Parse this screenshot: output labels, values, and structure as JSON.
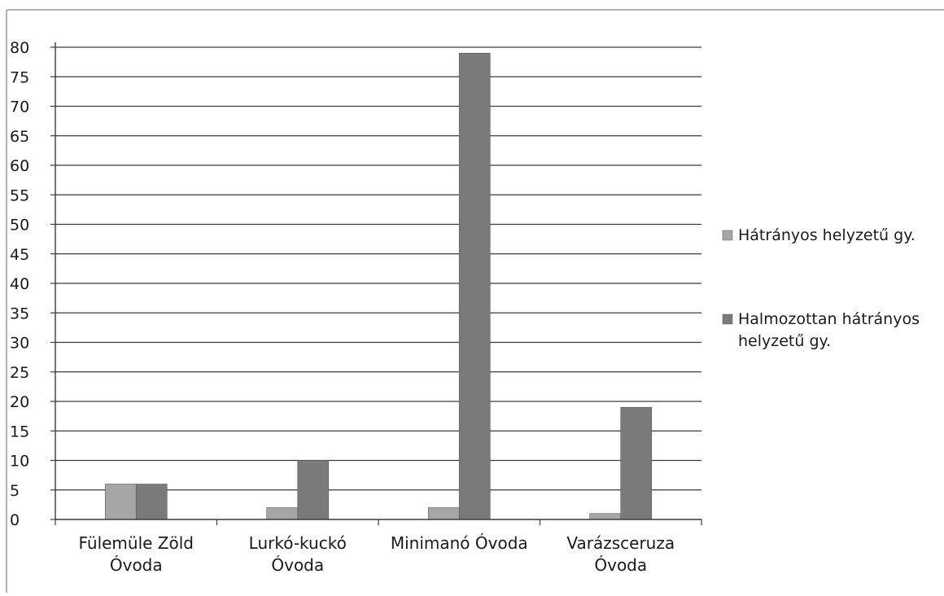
{
  "chart_data": {
    "type": "bar",
    "title": "",
    "xlabel": "",
    "ylabel": "",
    "categories": [
      [
        "Fülemüle Zöld",
        "Óvoda"
      ],
      [
        "Lurkó-kuckó",
        "Óvoda"
      ],
      [
        "Minimanó Óvoda"
      ],
      [
        "Varázsceruza",
        "Óvoda"
      ]
    ],
    "series": [
      {
        "name": "Hátrányos helyzetű gy.",
        "values": [
          6,
          2,
          2,
          1
        ],
        "color": "#a6a6a6"
      },
      {
        "name": "Halmozottan hátrányos helyzetű gy.",
        "legend_lines": [
          "Halmozottan hátrányos",
          "helyzetű gy."
        ],
        "values": [
          6,
          10,
          79,
          19
        ],
        "color": "#7a7a7a"
      }
    ],
    "yticks": [
      0,
      5,
      10,
      15,
      20,
      25,
      30,
      35,
      40,
      45,
      50,
      55,
      60,
      65,
      70,
      75,
      80
    ],
    "ylim": [
      0,
      80
    ],
    "grid": true,
    "legend_position": "right"
  }
}
